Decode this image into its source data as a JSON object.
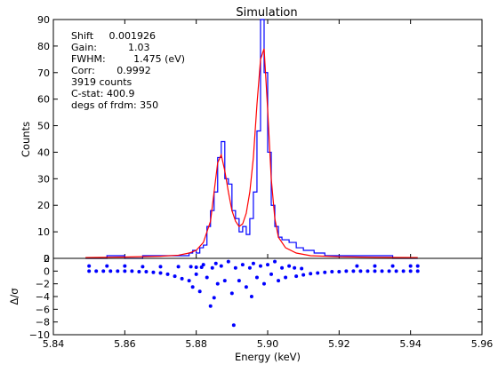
{
  "chart_data": [
    {
      "type": "line",
      "title": "Simulation",
      "xlabel": "",
      "ylabel": "Counts",
      "xlim": [
        5.84,
        5.96
      ],
      "ylim": [
        0,
        90
      ],
      "x_ticks": [],
      "y_ticks": [
        0,
        10,
        20,
        30,
        40,
        50,
        60,
        70,
        80,
        90
      ],
      "grid": false,
      "annotation_lines": [
        "Shift     0.001926",
        "Gain:          1.03",
        "FWHM:         1.475 (eV)",
        "Corr:       0.9992",
        "3919 counts",
        "C-stat: 400.9",
        "degs of frdm: 350"
      ],
      "series": [
        {
          "style": "step",
          "color": "#0000ff",
          "x": [
            5.849,
            5.855,
            5.86,
            5.865,
            5.87,
            5.872,
            5.874,
            5.876,
            5.878,
            5.879,
            5.88,
            5.881,
            5.882,
            5.883,
            5.884,
            5.885,
            5.886,
            5.887,
            5.888,
            5.889,
            5.89,
            5.891,
            5.892,
            5.893,
            5.894,
            5.895,
            5.896,
            5.897,
            5.898,
            5.899,
            5.9,
            5.901,
            5.902,
            5.903,
            5.904,
            5.906,
            5.908,
            5.91,
            5.913,
            5.916,
            5.92,
            5.925,
            5.93,
            5.935,
            5.942
          ],
          "y": [
            0,
            1,
            0,
            1,
            1,
            1,
            1,
            1,
            2,
            3,
            2,
            4,
            5,
            12,
            18,
            25,
            38,
            44,
            30,
            28,
            18,
            15,
            10,
            12,
            9,
            15,
            25,
            48,
            90,
            70,
            40,
            20,
            12,
            8,
            7,
            6,
            4,
            3,
            2,
            1,
            1,
            1,
            1,
            0,
            0
          ]
        },
        {
          "style": "line",
          "color": "#ff0000",
          "x": [
            5.849,
            5.86,
            5.87,
            5.875,
            5.878,
            5.88,
            5.882,
            5.884,
            5.885,
            5.886,
            5.887,
            5.888,
            5.889,
            5.89,
            5.891,
            5.892,
            5.893,
            5.894,
            5.895,
            5.896,
            5.897,
            5.898,
            5.899,
            5.9,
            5.901,
            5.902,
            5.903,
            5.905,
            5.908,
            5.912,
            5.92,
            5.93,
            5.942
          ],
          "y": [
            0.3,
            0.5,
            0.8,
            1.2,
            2,
            3,
            6,
            14,
            25,
            36,
            39,
            33,
            25,
            18,
            14,
            12,
            13,
            17,
            25,
            38,
            58,
            75,
            79,
            56,
            30,
            15,
            8,
            4,
            2,
            1,
            0.6,
            0.4,
            0.3
          ]
        }
      ]
    },
    {
      "type": "scatter",
      "title": "",
      "xlabel": "Energy (keV)",
      "ylabel": "Δ/σ",
      "xlim": [
        5.84,
        5.96
      ],
      "ylim": [
        -10,
        2
      ],
      "x_ticks": [
        5.84,
        5.86,
        5.88,
        5.9,
        5.92,
        5.94,
        5.96
      ],
      "y_ticks": [
        -10,
        -8,
        -6,
        -4,
        -2,
        0,
        2
      ],
      "grid": false,
      "series": [
        {
          "color": "#0000ff",
          "x": [
            5.85,
            5.852,
            5.854,
            5.856,
            5.858,
            5.86,
            5.862,
            5.864,
            5.866,
            5.868,
            5.87,
            5.872,
            5.874,
            5.876,
            5.878,
            5.879,
            5.88,
            5.881,
            5.882,
            5.883,
            5.884,
            5.8845,
            5.885,
            5.8855,
            5.886,
            5.887,
            5.888,
            5.889,
            5.89,
            5.8905,
            5.891,
            5.892,
            5.893,
            5.894,
            5.895,
            5.8955,
            5.896,
            5.897,
            5.898,
            5.899,
            5.9,
            5.901,
            5.902,
            5.903,
            5.904,
            5.905,
            5.906,
            5.908,
            5.91,
            5.912,
            5.914,
            5.916,
            5.918,
            5.92,
            5.922,
            5.924,
            5.926,
            5.928,
            5.93,
            5.932,
            5.934,
            5.936,
            5.938,
            5.94,
            5.942,
            5.85,
            5.855,
            5.86,
            5.865,
            5.87,
            5.875,
            5.88,
            5.925,
            5.93,
            5.935,
            5.94,
            5.942,
            5.9075,
            5.9095,
            5.8785,
            5.8815
          ],
          "y": [
            0,
            0,
            0,
            0,
            0,
            0,
            0,
            -0.1,
            -0.1,
            -0.2,
            -0.3,
            -0.5,
            -0.8,
            -1.2,
            -1.5,
            -2.5,
            -0.5,
            -3.2,
            1,
            -1,
            -5.5,
            0.5,
            -4.2,
            1.2,
            -2,
            0.8,
            -1.5,
            1.5,
            -3.5,
            -8.5,
            0.5,
            -1.5,
            1,
            -2.5,
            0.5,
            -4,
            1.2,
            -1,
            0.8,
            -2,
            1,
            -0.5,
            1.5,
            -1.5,
            0.5,
            -1,
            0.8,
            -0.8,
            -0.6,
            -0.4,
            -0.3,
            -0.2,
            -0.1,
            -0.1,
            0,
            0,
            0,
            0,
            0,
            0,
            0,
            0,
            0,
            0,
            0,
            0.8,
            0.8,
            0.8,
            0.7,
            0.7,
            0.7,
            0.6,
            0.8,
            0.8,
            0.8,
            0.8,
            0.8,
            0.5,
            0.4,
            0.7,
            0.6
          ]
        }
      ]
    }
  ]
}
